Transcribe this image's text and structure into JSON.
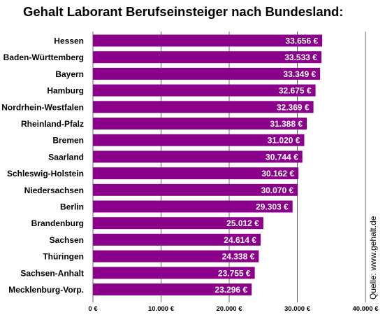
{
  "chart_data": {
    "type": "bar",
    "orientation": "horizontal",
    "title": "Gehalt Laborant Berufseinsteiger nach Bundesland:",
    "categories": [
      "Hessen",
      "Baden-Württemberg",
      "Bayern",
      "Hamburg",
      "Nordrhein-Westfalen",
      "Rheinland-Pfalz",
      "Bremen",
      "Saarland",
      "Schleswig-Holstein",
      "Niedersachsen",
      "Berlin",
      "Brandenburg",
      "Sachsen",
      "Thüringen",
      "Sachsen-Anhalt",
      "Mecklenburg-Vorp."
    ],
    "values": [
      33656,
      33533,
      33349,
      32675,
      32369,
      31388,
      31020,
      30744,
      30162,
      30070,
      29303,
      25012,
      24614,
      24338,
      23755,
      23296
    ],
    "value_labels": [
      "33.656 €",
      "33.533 €",
      "33.349 €",
      "32.675 €",
      "32.369 €",
      "31.388 €",
      "31.020 €",
      "30.744 €",
      "30.162 €",
      "30.070 €",
      "29.303 €",
      "25.012 €",
      "24.614 €",
      "24.338 €",
      "23.755 €",
      "23.296 €"
    ],
    "xlim": [
      0,
      40000
    ],
    "xticks": [
      0,
      10000,
      20000,
      30000,
      40000
    ],
    "xtick_labels": [
      "0 €",
      "10.000 €",
      "20.000 €",
      "30.000 €",
      "40.000 €"
    ],
    "grid": true,
    "bar_color": "#8b008b"
  },
  "source": "Quelle: www.gehalt.de"
}
